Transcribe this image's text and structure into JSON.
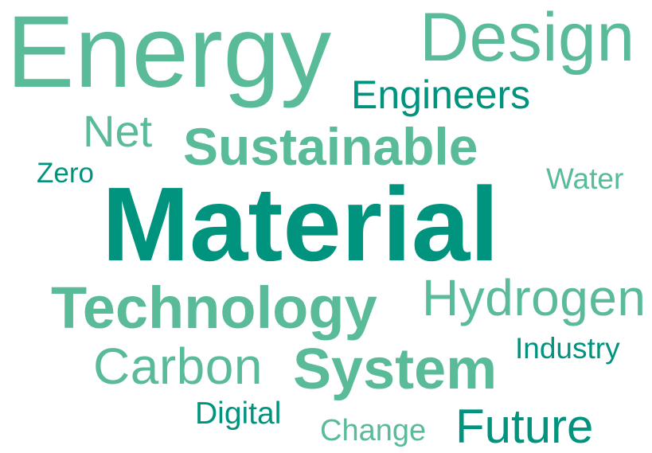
{
  "colors": {
    "primary": "#00937E",
    "secondary": "#5ABB98"
  },
  "words": [
    {
      "text": "Energy",
      "weight": "light",
      "color": "secondary"
    },
    {
      "text": "Design",
      "weight": "light",
      "color": "secondary"
    },
    {
      "text": "Engineers",
      "weight": "regular",
      "color": "primary"
    },
    {
      "text": "Net",
      "weight": "regular",
      "color": "secondary"
    },
    {
      "text": "Sustainable",
      "weight": "bold",
      "color": "secondary"
    },
    {
      "text": "Zero",
      "weight": "regular",
      "color": "primary"
    },
    {
      "text": "Water",
      "weight": "regular",
      "color": "secondary"
    },
    {
      "text": "Material",
      "weight": "bold",
      "color": "primary"
    },
    {
      "text": "Technology",
      "weight": "bold",
      "color": "secondary"
    },
    {
      "text": "Hydrogen",
      "weight": "light",
      "color": "secondary"
    },
    {
      "text": "Carbon",
      "weight": "light",
      "color": "secondary"
    },
    {
      "text": "System",
      "weight": "bold",
      "color": "secondary"
    },
    {
      "text": "Industry",
      "weight": "regular",
      "color": "primary"
    },
    {
      "text": "Digital",
      "weight": "regular",
      "color": "primary"
    },
    {
      "text": "Change",
      "weight": "regular",
      "color": "secondary"
    },
    {
      "text": "Future",
      "weight": "regular",
      "color": "primary"
    }
  ]
}
